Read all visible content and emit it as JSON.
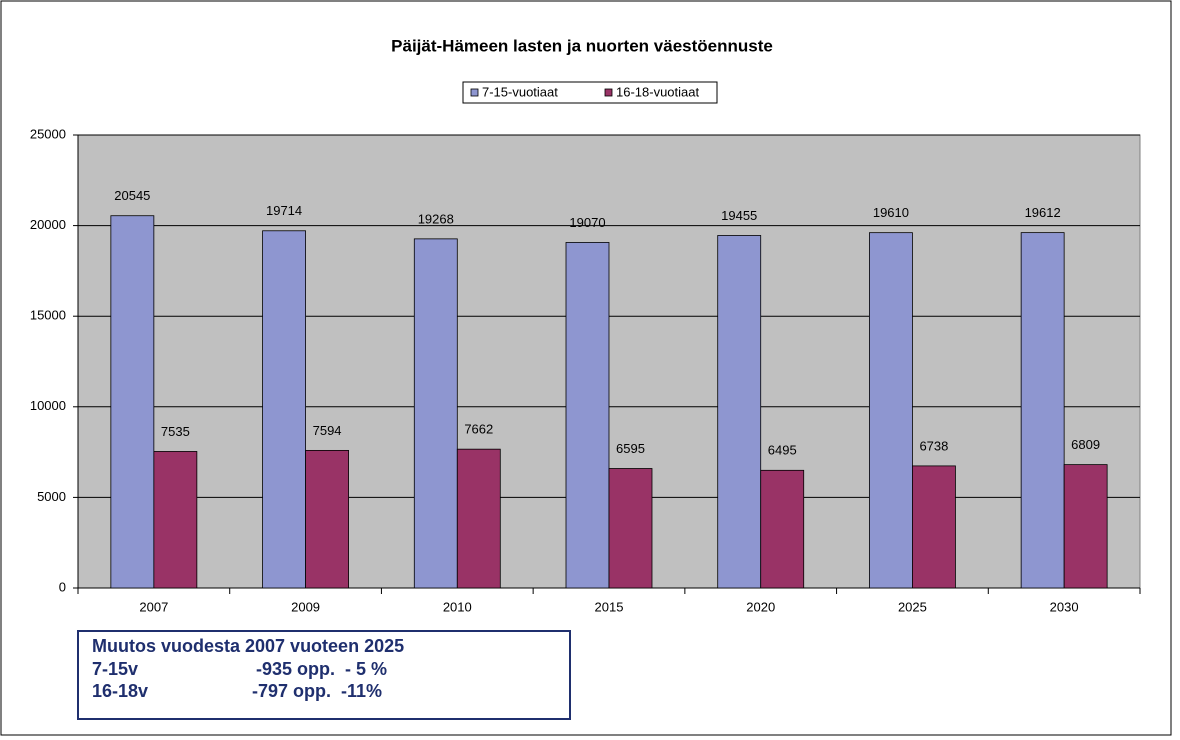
{
  "chart_data": {
    "type": "bar",
    "title": "Päijät-Hämeen lasten ja nuorten väestöennuste",
    "categories": [
      "2007",
      "2009",
      "2010",
      "2015",
      "2020",
      "2025",
      "2030"
    ],
    "series": [
      {
        "name": "7-15-vuotiaat",
        "color": "#8e96d0",
        "values": [
          20545,
          19714,
          19268,
          19070,
          19455,
          19610,
          19612
        ]
      },
      {
        "name": "16-18-vuotiaat",
        "color": "#993366",
        "values": [
          7535,
          7594,
          7662,
          6595,
          6495,
          6738,
          6809
        ]
      }
    ],
    "ylim": [
      0,
      25000
    ],
    "yticks": [
      0,
      5000,
      10000,
      15000,
      20000,
      25000
    ],
    "grid": true,
    "legend": "top",
    "plot_background": "#c0c0c0",
    "annotation": {
      "title": "Muutos vuodesta 2007 vuoteen 2025",
      "rows": [
        [
          "7-15v",
          "-935 opp.  - 5 %"
        ],
        [
          "16-18v",
          "-797 opp.  -11%"
        ]
      ]
    }
  }
}
